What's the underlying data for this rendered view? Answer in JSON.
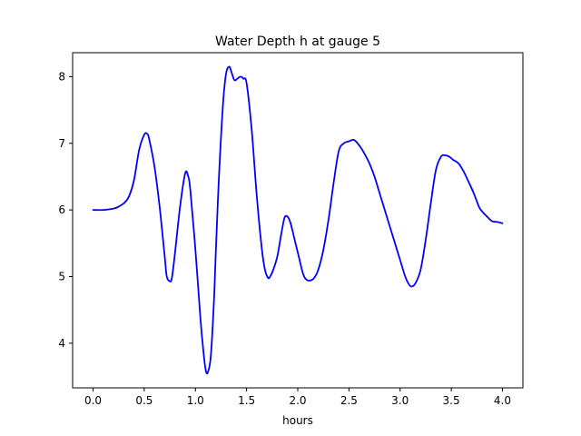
{
  "chart_data": {
    "type": "line",
    "title": "Water Depth h at gauge 5",
    "xlabel": "hours",
    "ylabel": "",
    "xlim": [
      -0.2,
      4.2
    ],
    "ylim": [
      3.33,
      8.36
    ],
    "xticks": [
      0.0,
      0.5,
      1.0,
      1.5,
      2.0,
      2.5,
      3.0,
      3.5,
      4.0
    ],
    "xtick_labels": [
      "0.0",
      "0.5",
      "1.0",
      "1.5",
      "2.0",
      "2.5",
      "3.0",
      "3.5",
      "4.0"
    ],
    "yticks": [
      4,
      5,
      6,
      7,
      8
    ],
    "ytick_labels": [
      "4",
      "5",
      "6",
      "7",
      "8"
    ],
    "grid": false,
    "series": [
      {
        "color": "#0000ff",
        "x": [
          0.0,
          0.1,
          0.2,
          0.25,
          0.3,
          0.35,
          0.4,
          0.45,
          0.5,
          0.53,
          0.55,
          0.6,
          0.65,
          0.7,
          0.72,
          0.75,
          0.77,
          0.8,
          0.85,
          0.9,
          0.93,
          0.95,
          1.0,
          1.05,
          1.08,
          1.1,
          1.12,
          1.15,
          1.18,
          1.2,
          1.23,
          1.27,
          1.3,
          1.33,
          1.35,
          1.38,
          1.41,
          1.44,
          1.47,
          1.5,
          1.55,
          1.6,
          1.65,
          1.68,
          1.71,
          1.73,
          1.76,
          1.8,
          1.84,
          1.87,
          1.9,
          1.93,
          1.97,
          2.01,
          2.05,
          2.08,
          2.12,
          2.16,
          2.2,
          2.25,
          2.3,
          2.35,
          2.4,
          2.45,
          2.5,
          2.55,
          2.6,
          2.65,
          2.7,
          2.75,
          2.8,
          2.85,
          2.9,
          2.95,
          3.0,
          3.05,
          3.08,
          3.11,
          3.15,
          3.2,
          3.25,
          3.3,
          3.35,
          3.4,
          3.44,
          3.48,
          3.52,
          3.57,
          3.62,
          3.67,
          3.72,
          3.77,
          3.8,
          3.85,
          3.9,
          3.95,
          4.0
        ],
        "values": [
          6.0,
          6.0,
          6.02,
          6.05,
          6.1,
          6.2,
          6.45,
          6.9,
          7.13,
          7.14,
          7.05,
          6.65,
          6.05,
          5.3,
          5.0,
          4.93,
          4.98,
          5.35,
          6.05,
          6.55,
          6.5,
          6.3,
          5.4,
          4.35,
          3.85,
          3.6,
          3.56,
          3.8,
          4.6,
          5.4,
          6.5,
          7.6,
          8.05,
          8.15,
          8.08,
          7.95,
          7.97,
          8.0,
          7.97,
          7.9,
          7.2,
          6.2,
          5.4,
          5.1,
          4.98,
          5.0,
          5.1,
          5.3,
          5.65,
          5.88,
          5.9,
          5.8,
          5.55,
          5.3,
          5.05,
          4.96,
          4.94,
          4.98,
          5.1,
          5.4,
          5.85,
          6.4,
          6.88,
          7.0,
          7.03,
          7.05,
          6.97,
          6.85,
          6.7,
          6.5,
          6.25,
          6.0,
          5.75,
          5.5,
          5.25,
          5.0,
          4.9,
          4.85,
          4.9,
          5.1,
          5.55,
          6.1,
          6.6,
          6.8,
          6.82,
          6.8,
          6.75,
          6.7,
          6.58,
          6.42,
          6.25,
          6.05,
          5.98,
          5.9,
          5.83,
          5.82,
          5.8
        ]
      }
    ]
  }
}
